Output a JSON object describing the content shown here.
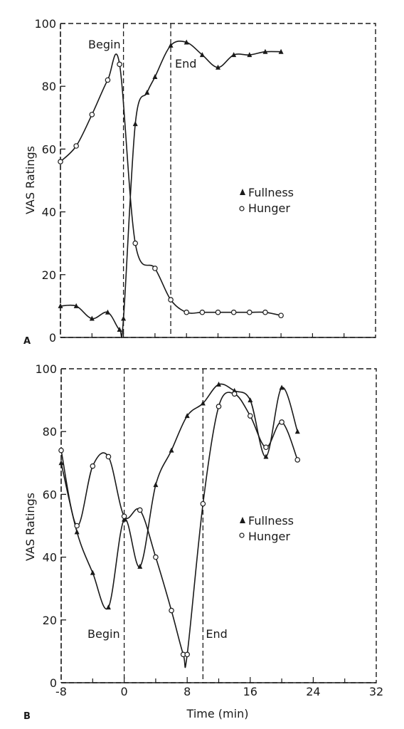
{
  "chart_data": [
    {
      "panel_label": "A",
      "type": "line",
      "ylabel": "VAS Ratings",
      "xlabel": "",
      "xlim": [
        -8,
        32
      ],
      "ylim": [
        0,
        100
      ],
      "y_ticks": [
        "0",
        "20",
        "40",
        "60",
        "80",
        "100"
      ],
      "x_ticks": [],
      "grid": false,
      "legend_position": "center-right",
      "annotations": [
        {
          "text": "Begin",
          "x": 0
        },
        {
          "text": "End",
          "x": 6
        }
      ],
      "series": [
        {
          "name": "Fullness",
          "marker": "triangle",
          "points": [
            [
              -8,
              10
            ],
            [
              -6,
              10
            ],
            [
              -4,
              6
            ],
            [
              -2,
              8
            ],
            [
              -0.5,
              2.5
            ],
            [
              0,
              6
            ],
            [
              1.5,
              68
            ],
            [
              3,
              78
            ],
            [
              4,
              83
            ],
            [
              6,
              93
            ],
            [
              8,
              94
            ],
            [
              10,
              90
            ],
            [
              12,
              86
            ],
            [
              14,
              90
            ],
            [
              16,
              90
            ],
            [
              18,
              91
            ],
            [
              20,
              91
            ]
          ]
        },
        {
          "name": "Hunger",
          "marker": "circle",
          "points": [
            [
              -8,
              56
            ],
            [
              -6,
              61
            ],
            [
              -4,
              71
            ],
            [
              -2,
              82
            ],
            [
              -0.5,
              87
            ],
            [
              1.5,
              30
            ],
            [
              4,
              22
            ],
            [
              6,
              12
            ],
            [
              8,
              8
            ],
            [
              10,
              8
            ],
            [
              12,
              8
            ],
            [
              14,
              8
            ],
            [
              16,
              8
            ],
            [
              18,
              8
            ],
            [
              20,
              7
            ]
          ]
        }
      ]
    },
    {
      "panel_label": "B",
      "type": "line",
      "ylabel": "VAS Ratings",
      "xlabel": "Time (min)",
      "xlim": [
        -8,
        32
      ],
      "ylim": [
        0,
        100
      ],
      "y_ticks": [
        "0",
        "20",
        "40",
        "60",
        "80",
        "100"
      ],
      "x_ticks": [
        "-8",
        "0",
        "8",
        "16",
        "24",
        "32"
      ],
      "grid": false,
      "legend_position": "center-right",
      "annotations": [
        {
          "text": "Begin",
          "x": 0
        },
        {
          "text": "End",
          "x": 10
        }
      ],
      "series": [
        {
          "name": "Fullness",
          "marker": "triangle",
          "points": [
            [
              -8,
              70
            ],
            [
              -6,
              48
            ],
            [
              -4,
              35
            ],
            [
              -2,
              24
            ],
            [
              0,
              52
            ],
            [
              2,
              37
            ],
            [
              4,
              63
            ],
            [
              6,
              74
            ],
            [
              8,
              85
            ],
            [
              10,
              89
            ],
            [
              12,
              95
            ],
            [
              14,
              93
            ],
            [
              16,
              90
            ],
            [
              18,
              72
            ],
            [
              20,
              94
            ],
            [
              22,
              80
            ]
          ]
        },
        {
          "name": "Hunger",
          "marker": "circle",
          "points": [
            [
              -8,
              74
            ],
            [
              -6,
              50
            ],
            [
              -4,
              69
            ],
            [
              -2,
              72
            ],
            [
              0,
              53
            ],
            [
              2,
              55
            ],
            [
              4,
              40
            ],
            [
              6,
              23
            ],
            [
              7.5,
              9
            ],
            [
              8,
              9
            ],
            [
              10,
              57
            ],
            [
              12,
              88
            ],
            [
              14,
              92
            ],
            [
              16,
              85
            ],
            [
              18,
              75
            ],
            [
              20,
              83
            ],
            [
              22,
              71
            ]
          ]
        }
      ]
    }
  ]
}
